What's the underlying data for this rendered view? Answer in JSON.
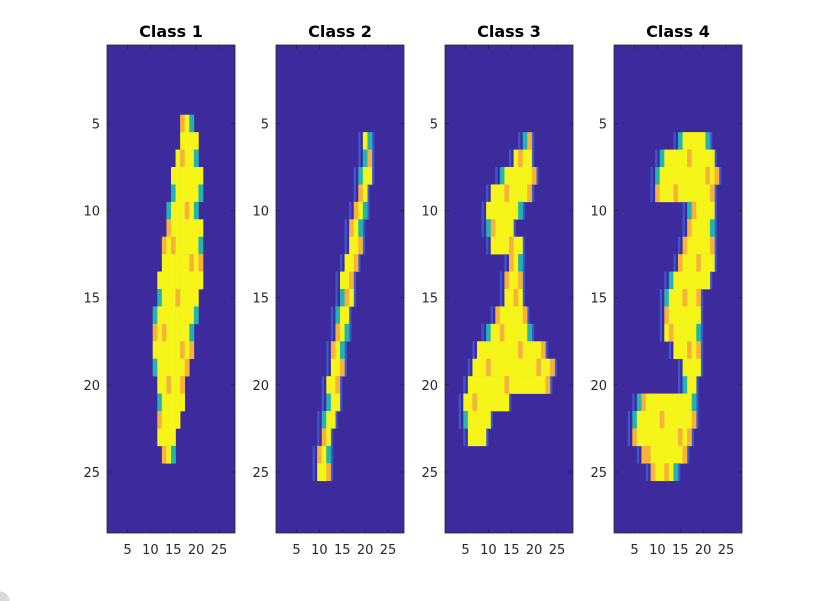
{
  "chart_data": [
    {
      "type": "heatmap",
      "title": "Class 1",
      "xticks": [
        5,
        10,
        15,
        20,
        25
      ],
      "yticks": [
        5,
        10,
        15,
        20,
        25
      ],
      "xlim": [
        0.5,
        28.5
      ],
      "ylim": [
        0.5,
        28.5
      ],
      "colormap": "parula",
      "colors": {
        "background": "#3d2b9e",
        "stroke": "#f5f51a",
        "mid": "#f8b23a",
        "low": "#23b4b0",
        "dim": "#3c69e0"
      },
      "stroke": [
        [
          5,
          17,
          19
        ],
        [
          6,
          17,
          20
        ],
        [
          7,
          16,
          20
        ],
        [
          8,
          15,
          21
        ],
        [
          9,
          15,
          21
        ],
        [
          10,
          14,
          20
        ],
        [
          11,
          14,
          21
        ],
        [
          12,
          13,
          21
        ],
        [
          13,
          13,
          21
        ],
        [
          14,
          12,
          21
        ],
        [
          15,
          12,
          20
        ],
        [
          16,
          11,
          20
        ],
        [
          17,
          11,
          19
        ],
        [
          18,
          11,
          19
        ],
        [
          19,
          11,
          18
        ],
        [
          20,
          12,
          17
        ],
        [
          21,
          12,
          17
        ],
        [
          22,
          12,
          16
        ],
        [
          23,
          12,
          15
        ],
        [
          24,
          13,
          15
        ]
      ]
    },
    {
      "type": "heatmap",
      "title": "Class 2",
      "xticks": [
        5,
        10,
        15,
        20,
        25
      ],
      "yticks": [
        5,
        10,
        15,
        20,
        25
      ],
      "xlim": [
        0.5,
        28.5
      ],
      "ylim": [
        0.5,
        28.5
      ],
      "colormap": "parula",
      "colors": {
        "background": "#3d2b9e",
        "stroke": "#f5f51a",
        "mid": "#f8b23a",
        "low": "#23b4b0",
        "dim": "#3c69e0"
      },
      "stroke": [
        [
          6,
          20,
          21
        ],
        [
          7,
          20,
          21
        ],
        [
          8,
          19,
          21
        ],
        [
          9,
          19,
          20
        ],
        [
          10,
          18,
          20
        ],
        [
          11,
          17,
          19
        ],
        [
          12,
          17,
          19
        ],
        [
          13,
          16,
          18
        ],
        [
          14,
          15,
          17
        ],
        [
          15,
          15,
          17
        ],
        [
          16,
          14,
          16
        ],
        [
          17,
          14,
          16
        ],
        [
          18,
          13,
          15
        ],
        [
          19,
          13,
          15
        ],
        [
          20,
          12,
          14
        ],
        [
          21,
          12,
          14
        ],
        [
          22,
          11,
          13
        ],
        [
          23,
          11,
          12
        ],
        [
          24,
          10,
          12
        ],
        [
          25,
          10,
          12
        ]
      ]
    },
    {
      "type": "heatmap",
      "title": "Class 3",
      "xticks": [
        5,
        10,
        15,
        20,
        25
      ],
      "yticks": [
        5,
        10,
        15,
        20,
        25
      ],
      "xlim": [
        0.5,
        28.5
      ],
      "ylim": [
        0.5,
        28.5
      ],
      "colormap": "parula",
      "colors": {
        "background": "#3d2b9e",
        "stroke": "#f5f51a",
        "mid": "#f8b23a",
        "low": "#23b4b0",
        "dim": "#3c69e0"
      },
      "stroke": [
        [
          6,
          18,
          19
        ],
        [
          7,
          16,
          19
        ],
        [
          8,
          13,
          20
        ],
        [
          9,
          11,
          19
        ],
        [
          10,
          10,
          17
        ],
        [
          11,
          10,
          15
        ],
        [
          12,
          11,
          17
        ],
        [
          13,
          15,
          17
        ],
        [
          14,
          14,
          17
        ],
        [
          15,
          14,
          17
        ],
        [
          16,
          12,
          18
        ],
        [
          17,
          10,
          19
        ],
        [
          18,
          8,
          22
        ],
        [
          19,
          7,
          24
        ],
        [
          20,
          6,
          23
        ],
        [
          21,
          5,
          14
        ],
        [
          22,
          5,
          10
        ],
        [
          23,
          6,
          9
        ]
      ]
    },
    {
      "type": "heatmap",
      "title": "Class 4",
      "xticks": [
        5,
        10,
        15,
        20,
        25
      ],
      "yticks": [
        5,
        10,
        15,
        20,
        25
      ],
      "xlim": [
        0.5,
        28.5
      ],
      "ylim": [
        0.5,
        28.5
      ],
      "colormap": "parula",
      "colors": {
        "background": "#3d2b9e",
        "stroke": "#f5f51a",
        "mid": "#f8b23a",
        "low": "#23b4b0",
        "dim": "#3c69e0"
      },
      "stroke": [
        [
          6,
          15,
          21
        ],
        [
          7,
          11,
          22
        ],
        [
          8,
          10,
          23
        ],
        [
          9,
          10,
          22
        ],
        [
          10,
          17,
          22
        ],
        [
          11,
          17,
          22
        ],
        [
          12,
          16,
          22
        ],
        [
          13,
          15,
          22
        ],
        [
          14,
          13,
          21
        ],
        [
          15,
          12,
          19
        ],
        [
          16,
          12,
          19
        ],
        [
          17,
          12,
          19
        ],
        [
          18,
          14,
          19
        ],
        [
          19,
          16,
          19
        ],
        [
          20,
          16,
          18
        ],
        [
          21,
          6,
          18
        ],
        [
          22,
          5,
          18
        ],
        [
          23,
          5,
          17
        ],
        [
          24,
          7,
          16
        ],
        [
          25,
          9,
          14
        ]
      ]
    }
  ]
}
